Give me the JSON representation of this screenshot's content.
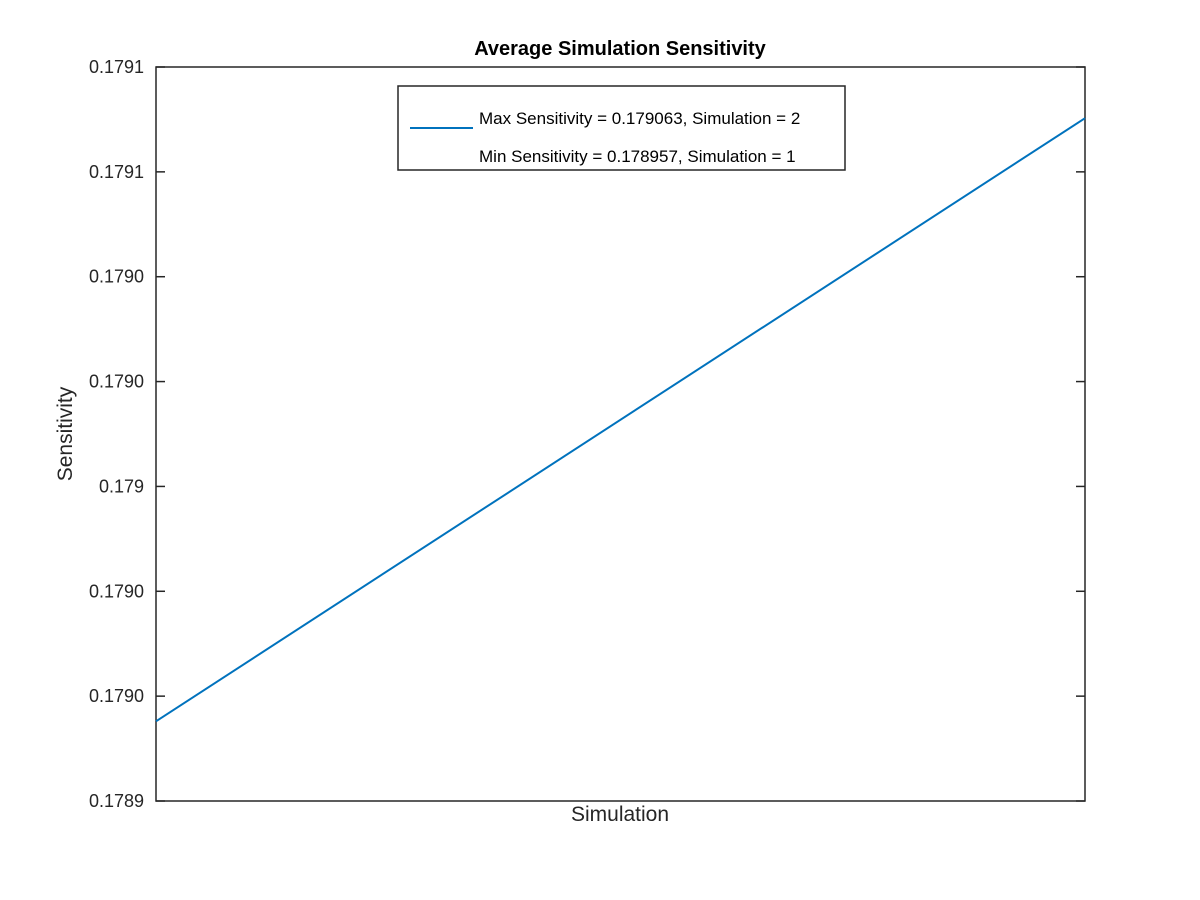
{
  "chart_data": {
    "type": "line",
    "title": "Average Simulation Sensitivity",
    "xlabel": "Simulation",
    "ylabel": "Sensitivity",
    "xlim": [
      1,
      2
    ],
    "ylim": [
      0.17895,
      0.17907
    ],
    "yticks": [
      0.17895,
      0.17897,
      0.17899,
      0.17901,
      0.17903,
      0.17905,
      0.17907
    ],
    "ytick_labels": [
      "0.1789",
      "0.1790",
      "0.1790",
      "0.179",
      "0.1790",
      "0.1790",
      "0.1791",
      "0.1791"
    ],
    "yticks_all": [
      0.17895,
      0.17897,
      0.17899,
      0.17901,
      0.17903,
      0.17905,
      0.17907,
      0.17909
    ],
    "xticks": [],
    "grid": false,
    "legend_position": "top",
    "series": [
      {
        "name": "Max Sensitivity = 0.179063, Simulation = 2",
        "x": [
          1,
          2
        ],
        "y": [
          0.178957,
          0.179063
        ],
        "color": "#0072BD"
      }
    ],
    "legend_entries": [
      "Max Sensitivity = 0.179063, Simulation = 2",
      "Min Sensitivity = 0.178957, Simulation = 1"
    ]
  }
}
